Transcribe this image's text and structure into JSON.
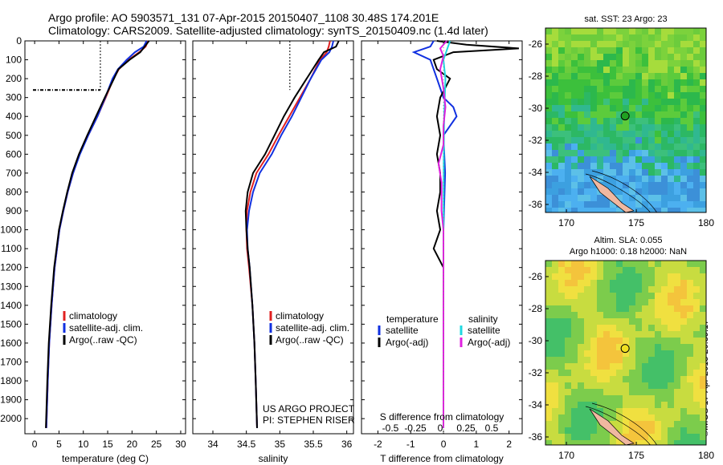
{
  "header": {
    "title_line1": "Argo profile: AO 5903571_131 07-Apr-2015 20150407_1108 30.48S 174.201E",
    "title_line2": "Climatology: CARS2009. Satellite-adjusted climatology: synTS_20150409.nc (1.4d later)"
  },
  "footer": {
    "stamp": "©IMOS 17-Apr-2015 20:39:17"
  },
  "colors": {
    "argo": "#000000",
    "climatology": "#e02020",
    "satellite": "#1030e0",
    "salinity_satellite": "#20d8e0",
    "salinity_argo": "#e020e0",
    "map_marker_sst": "#20a020",
    "map_marker_sla": "#f0e020"
  },
  "chart_data": [
    {
      "type": "line",
      "panel": "temperature",
      "xlabel": "temperature (deg C)",
      "ylabel": "",
      "xlim": [
        -2,
        31
      ],
      "ylim": [
        2080,
        0
      ],
      "xticks": [
        0,
        5,
        10,
        15,
        20,
        25,
        30
      ],
      "yticks": [
        0,
        100,
        200,
        300,
        400,
        500,
        600,
        700,
        800,
        900,
        1000,
        1100,
        1200,
        1300,
        1400,
        1500,
        1600,
        1700,
        1800,
        1900,
        2000
      ],
      "mld_dotted": {
        "x": 13.5,
        "depth_range": [
          0,
          260
        ]
      },
      "legend": [
        "climatology",
        "satellite-adj. clim.",
        "Argo(..raw -QC)"
      ],
      "legend_position": "lower-left",
      "series": [
        {
          "name": "climatology",
          "depth": [
            0,
            30,
            60,
            100,
            150,
            200,
            300,
            400,
            500,
            600,
            700,
            800,
            900,
            1000,
            1200,
            1400,
            1600,
            1800,
            2050
          ],
          "values": [
            23.3,
            22.8,
            21.5,
            19.3,
            17.3,
            16.2,
            14.6,
            12.9,
            11.0,
            9.2,
            7.9,
            6.8,
            5.9,
            5.1,
            4.1,
            3.5,
            3.0,
            2.7,
            2.4
          ]
        },
        {
          "name": "satellite-adj. clim.",
          "depth": [
            0,
            30,
            60,
            100,
            150,
            200,
            300,
            400,
            500,
            600,
            700,
            800,
            900,
            1000,
            1200,
            1400,
            1600,
            1800,
            2050
          ],
          "values": [
            23.0,
            22.4,
            20.6,
            18.9,
            17.1,
            16.0,
            14.5,
            12.9,
            11.0,
            9.3,
            7.9,
            6.8,
            5.9,
            5.1,
            4.1,
            3.5,
            3.0,
            2.7,
            2.4
          ]
        },
        {
          "name": "Argo(..raw -QC)",
          "depth": [
            0,
            30,
            60,
            100,
            150,
            200,
            300,
            400,
            500,
            600,
            700,
            800,
            900,
            1000,
            1200,
            1400,
            1600,
            1800,
            2050
          ],
          "values": [
            23.5,
            22.6,
            21.7,
            19.5,
            17.2,
            16.3,
            14.4,
            12.6,
            10.8,
            9.1,
            7.7,
            6.7,
            5.8,
            5.0,
            4.0,
            3.4,
            2.9,
            2.6,
            2.3
          ]
        }
      ]
    },
    {
      "type": "line",
      "panel": "salinity",
      "xlabel": "salinity",
      "xlim": [
        33.7,
        36.1
      ],
      "ylim": [
        2080,
        0
      ],
      "xticks": [
        34,
        34.5,
        35,
        35.5,
        36
      ],
      "mld_dotted": {
        "x": 35.15,
        "depth_range": [
          0,
          260
        ]
      },
      "legend": [
        "climatology",
        "satellite-adj. clim.",
        "Argo(..raw -QC)"
      ],
      "legend_position": "lower-right",
      "annotations": [
        "US ARGO PROJECT",
        "PI: STEPHEN RISER"
      ],
      "series": [
        {
          "name": "climatology",
          "depth": [
            0,
            30,
            60,
            100,
            200,
            300,
            400,
            500,
            600,
            700,
            800,
            900,
            1000,
            1100,
            1200,
            1400,
            1600,
            1800,
            2050
          ],
          "values": [
            35.75,
            35.73,
            35.7,
            35.6,
            35.46,
            35.3,
            35.14,
            34.98,
            34.83,
            34.65,
            34.56,
            34.51,
            34.5,
            34.51,
            34.54,
            34.59,
            34.62,
            34.64,
            34.66
          ]
        },
        {
          "name": "satellite-adj. clim.",
          "depth": [
            0,
            30,
            60,
            100,
            200,
            300,
            400,
            500,
            600,
            700,
            800,
            900,
            1000,
            1100,
            1200,
            1400,
            1600,
            1800,
            2050
          ],
          "values": [
            35.8,
            35.78,
            35.74,
            35.62,
            35.46,
            35.32,
            35.18,
            35.02,
            34.88,
            34.7,
            34.6,
            34.54,
            34.51,
            34.52,
            34.55,
            34.59,
            34.62,
            34.64,
            34.66
          ]
        },
        {
          "name": "Argo(..raw -QC)",
          "depth": [
            0,
            30,
            60,
            100,
            200,
            300,
            400,
            500,
            600,
            700,
            800,
            900,
            1000,
            1100,
            1200,
            1400,
            1600,
            1800,
            2050
          ],
          "values": [
            35.88,
            35.84,
            35.66,
            35.58,
            35.4,
            35.22,
            35.06,
            34.92,
            34.78,
            34.6,
            34.52,
            34.49,
            34.5,
            34.52,
            34.55,
            34.59,
            34.62,
            34.64,
            34.66
          ]
        }
      ]
    },
    {
      "type": "line",
      "panel": "difference",
      "xlabel": "T difference from climatology",
      "xlabel_top": "S difference from climatology",
      "xlim": [
        -2.5,
        2.4
      ],
      "ylim": [
        2080,
        0
      ],
      "xticks": [
        -2,
        -1,
        0,
        1,
        2
      ],
      "xticks_s": [
        "-0.5",
        "-0.25",
        "0",
        "0.25",
        "0.5"
      ],
      "legend": [
        "temperature",
        "satellite",
        "Argo(-adj)",
        "salinity",
        "satellite",
        "Argo(-adj)"
      ],
      "legend_position": "lower",
      "series": [
        {
          "name": "temperature satellite",
          "depth": [
            0,
            30,
            60,
            100,
            200,
            300,
            350,
            400,
            500,
            700,
            1000,
            1500,
            2050
          ],
          "values": [
            -0.3,
            -0.4,
            -0.9,
            -0.4,
            -0.2,
            0.0,
            0.3,
            0.4,
            0.0,
            0.05,
            0.0,
            0.0,
            0.0
          ]
        },
        {
          "name": "temperature Argo(-adj)",
          "depth": [
            0,
            20,
            40,
            60,
            100,
            150,
            200,
            300,
            400,
            500,
            600,
            700,
            800,
            900,
            1000,
            1100,
            1200,
            1300,
            1500,
            2050
          ],
          "values": [
            -0.2,
            0.7,
            2.3,
            0.3,
            -0.3,
            -0.2,
            0.2,
            -0.1,
            -0.2,
            -0.1,
            -0.2,
            -0.1,
            -0.1,
            -0.2,
            -0.1,
            -0.3,
            0.0,
            0.0,
            0.0,
            0.0
          ]
        },
        {
          "name": "salinity satellite",
          "depth": [
            0,
            50,
            100,
            200,
            300,
            400,
            600,
            1000,
            1500,
            2050
          ],
          "values": [
            0.2,
            0.1,
            0.0,
            0.06,
            0.04,
            0.02,
            0.01,
            0.0,
            0.0,
            0.0
          ]
        },
        {
          "name": "salinity Argo(-adj)",
          "depth": [
            0,
            40,
            80,
            150,
            250,
            350,
            450,
            550,
            650,
            750,
            900,
            1000,
            1200,
            1500,
            2050
          ],
          "values": [
            0.1,
            -0.1,
            0.0,
            -0.1,
            0.0,
            0.06,
            0.0,
            0.0,
            -0.15,
            -0.06,
            -0.06,
            0.0,
            0.0,
            0.0,
            0.0
          ]
        }
      ]
    },
    {
      "type": "heatmap",
      "panel": "sst_map",
      "title": "sat. SST: 23 Argo: 23",
      "xlim": [
        168.5,
        180
      ],
      "ylim": [
        -36.5,
        -25
      ],
      "xticks": [
        170,
        175,
        180
      ],
      "yticks": [
        -26,
        -28,
        -30,
        -32,
        -34,
        -36
      ],
      "marker": {
        "lon": 174.201,
        "lat": -30.48
      }
    },
    {
      "type": "heatmap",
      "panel": "sla_map",
      "title_line1": "Altim. SLA: 0.055",
      "title_line2": "Argo h1000: 0.18 h2000: NaN",
      "xlim": [
        168.5,
        180
      ],
      "ylim": [
        -36.5,
        -25
      ],
      "xticks": [
        170,
        175,
        180
      ],
      "yticks": [
        -26,
        -28,
        -30,
        -32,
        -34,
        -36
      ],
      "marker": {
        "lon": 174.201,
        "lat": -30.48
      }
    }
  ]
}
